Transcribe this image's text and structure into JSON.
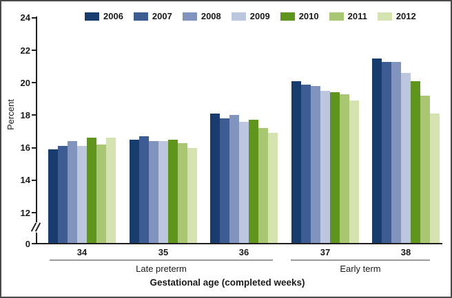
{
  "figure": {
    "y_axis_title": "Percent",
    "x_axis_title": "Gestational age (completed weeks)",
    "brackets": {
      "late_preterm": "Late preterm",
      "early_term": "Early term"
    }
  },
  "chart_data": {
    "type": "bar",
    "title": "",
    "xlabel": "Gestational age (completed weeks)",
    "ylabel": "Percent",
    "categories": [
      "34",
      "35",
      "36",
      "37",
      "38"
    ],
    "category_groups": [
      {
        "label": "Late preterm",
        "categories": [
          "34",
          "35",
          "36"
        ]
      },
      {
        "label": "Early term",
        "categories": [
          "37",
          "38"
        ]
      }
    ],
    "series": [
      {
        "name": "2006",
        "color": "#173c6d",
        "values": [
          15.9,
          16.5,
          18.1,
          20.1,
          21.5
        ]
      },
      {
        "name": "2007",
        "color": "#3e5c94",
        "values": [
          16.1,
          16.7,
          17.8,
          19.9,
          21.3
        ]
      },
      {
        "name": "2008",
        "color": "#8194be",
        "values": [
          16.4,
          16.4,
          18.0,
          19.8,
          21.3
        ]
      },
      {
        "name": "2009",
        "color": "#bdc6df",
        "values": [
          16.1,
          16.4,
          17.6,
          19.5,
          20.6
        ]
      },
      {
        "name": "2010",
        "color": "#60951d",
        "values": [
          16.6,
          16.5,
          17.7,
          19.4,
          20.1
        ]
      },
      {
        "name": "2011",
        "color": "#a9c672",
        "values": [
          16.2,
          16.3,
          17.2,
          19.3,
          19.2
        ]
      },
      {
        "name": "2012",
        "color": "#d4e3b0",
        "values": [
          16.6,
          16.0,
          16.9,
          18.9,
          18.1
        ]
      }
    ],
    "yticks": [
      0,
      12,
      14,
      16,
      18,
      20,
      22,
      24
    ],
    "ylim": [
      0,
      24
    ],
    "axis_break_between": [
      0,
      12
    ],
    "grid": false,
    "legend_position": "top"
  }
}
